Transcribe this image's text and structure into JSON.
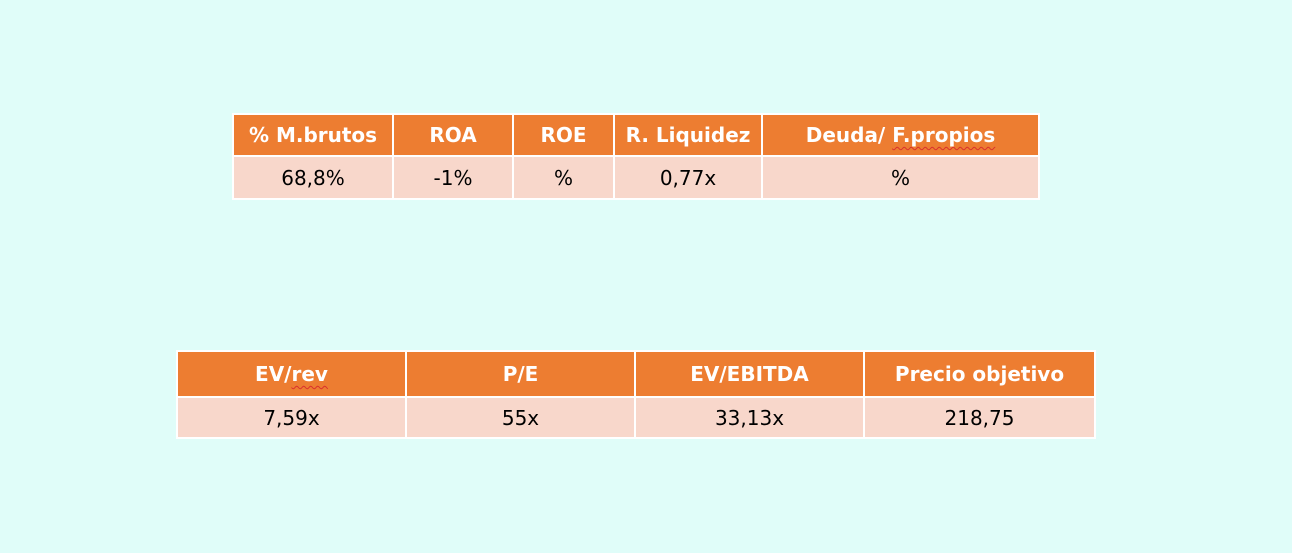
{
  "ratios_table": {
    "headers": [
      "% M.brutos",
      "ROA",
      "ROE",
      "R. Liquidez",
      "Deuda/ ",
      "F.propios"
    ],
    "values": [
      "68,8%",
      "-1%",
      "%",
      "0,77x",
      "%"
    ]
  },
  "valuation_table": {
    "headers": [
      "EV/",
      "rev",
      "P/E",
      "EV/EBITDA",
      "Precio objetivo"
    ],
    "values": [
      "7,59x",
      "55x",
      "33,13x",
      "218,75"
    ]
  },
  "colors": {
    "background": "#e0fdf9",
    "header_fill": "#ed7d31",
    "row_fill": "#f8d7cb",
    "header_text": "#ffffff",
    "spellcheck_underline": "#d9302c"
  }
}
